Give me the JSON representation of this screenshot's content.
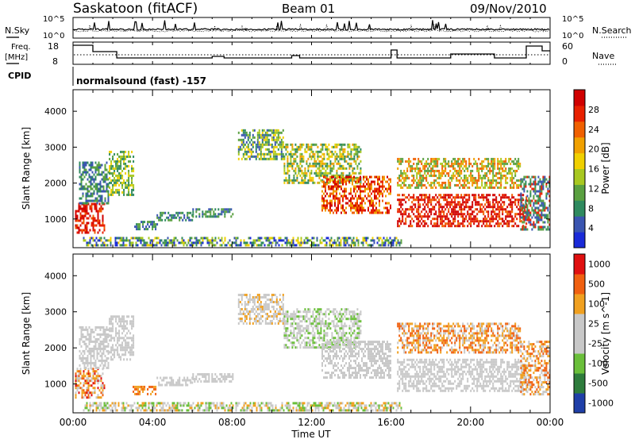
{
  "header": {
    "title": "Saskatoon (fitACF)",
    "beam": "Beam 01",
    "date": "09/Nov/2010"
  },
  "panels": {
    "nsky": {
      "label": "N.Sky",
      "ticks": [
        "10^5",
        "10^0"
      ],
      "right_ticks": [
        "10^5",
        "10^0"
      ],
      "right_label": "N.Search"
    },
    "freq": {
      "label_line1": "Freq.",
      "label_line2": "[MHz]",
      "ticks": [
        "18",
        "8"
      ],
      "right_ticks": [
        "60",
        "0"
      ],
      "right_label": "Nave"
    },
    "cpid": {
      "label": "CPID",
      "value": "normalsound (fast) -157"
    }
  },
  "chart_data": [
    {
      "type": "heatmap",
      "name": "power",
      "ylabel": "Slant Range [km]",
      "yticks": [
        "1000",
        "2000",
        "3000",
        "4000"
      ],
      "ylim": [
        200,
        4600
      ],
      "colorbar": {
        "label": "Power [dB]",
        "ticks": [
          "4",
          "8",
          "12",
          "16",
          "20",
          "24",
          "28"
        ],
        "colors": [
          "#1a2ad8",
          "#3a55b0",
          "#2f8a5f",
          "#5aa040",
          "#a8c820",
          "#f0d000",
          "#f0a000",
          "#f06000",
          "#e82000",
          "#d00000"
        ]
      }
    },
    {
      "type": "heatmap",
      "name": "velocity",
      "ylabel": "Slant Range [km]",
      "yticks": [
        "1000",
        "2000",
        "3000",
        "4000"
      ],
      "ylim": [
        200,
        4600
      ],
      "colorbar": {
        "label": "Velocity [m s^-1]",
        "ticks": [
          "1000",
          "500",
          "100",
          "25",
          "-25",
          "-100",
          "-500",
          "-1000"
        ],
        "colors": [
          "#1f3fa8",
          "#2e7c3c",
          "#6abf3a",
          "#c8c8c8",
          "#c8c8c8",
          "#f0a020",
          "#f06010",
          "#e01010"
        ]
      }
    }
  ],
  "xaxis": {
    "label": "Time UT",
    "ticks": [
      "00:00",
      "04:00",
      "08:00",
      "12:00",
      "16:00",
      "20:00",
      "00:00"
    ]
  }
}
